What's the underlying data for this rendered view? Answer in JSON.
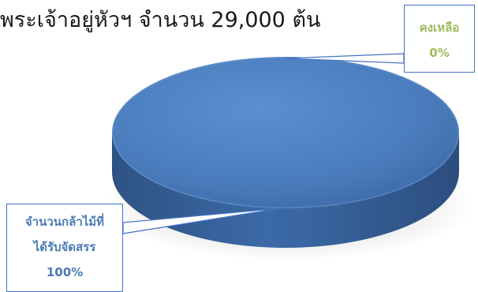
{
  "chart_data": {
    "type": "pie",
    "title": "พระเจ้าอยู่หัวฯ จำนวน 29,000 ต้น",
    "categories": [
      "จำนวนกล้าไม้ที่ได้รับจัดสรร",
      "คงเหลือ"
    ],
    "values": [
      100,
      0
    ],
    "value_unit": "%",
    "series": [
      {
        "values": [
          100,
          0
        ]
      }
    ],
    "labels": [
      {
        "category_lines": [
          "จำนวนกล้าไม้ที่",
          "ได้รับจัดสรร"
        ],
        "value_text": "100%"
      },
      {
        "category_lines": [
          "คงเหลือ"
        ],
        "value_text": "0%"
      }
    ],
    "legend": "none",
    "style": "3d",
    "colors": {
      "slice_allocated": "#4f81bd",
      "slice_remaining": "#9bbb59",
      "label_border": "#4472c4",
      "label_text_allocated": "#4a7ab5",
      "label_text_remaining": "#9bbb59"
    }
  }
}
